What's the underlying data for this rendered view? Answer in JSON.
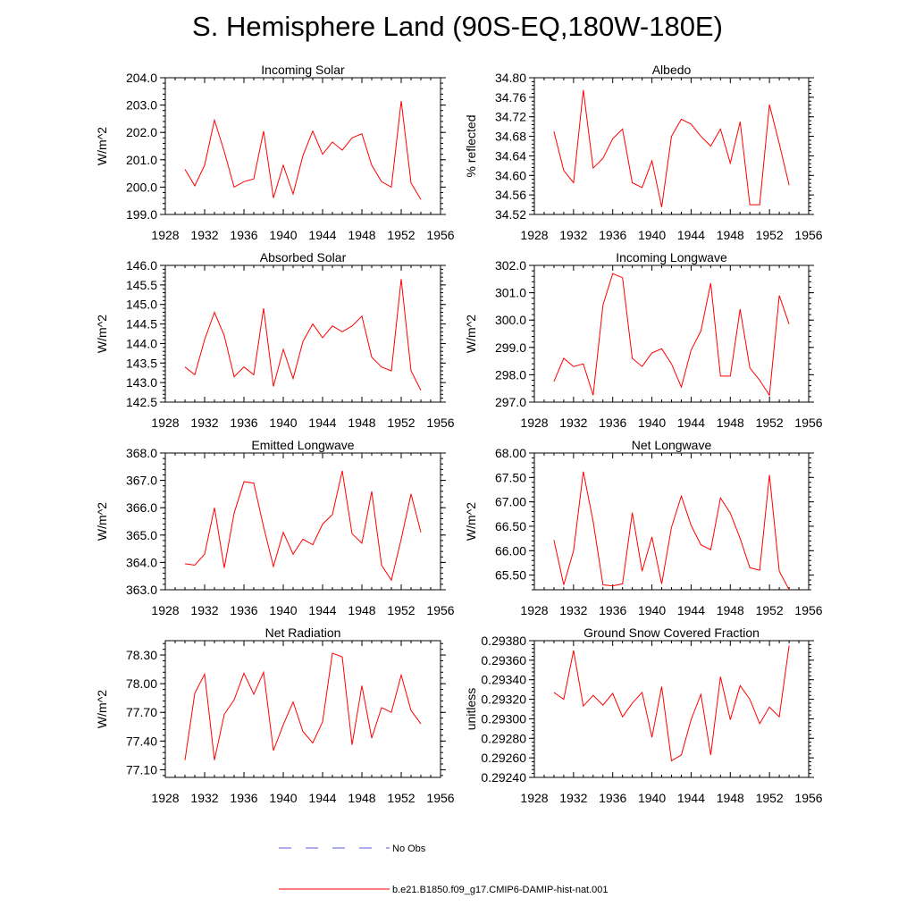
{
  "page_title": "S. Hemisphere Land (90S-EQ,180W-180E)",
  "legend": [
    {
      "label": "No Obs",
      "color": "#5a5adc",
      "style": "dashed"
    },
    {
      "label": "b.e21.B1850.f09_g17.CMIP6-DAMIP-hist-nat.001",
      "color": "#ff0000",
      "style": "solid"
    }
  ],
  "chart_data": [
    {
      "type": "line",
      "title": "Incoming Solar",
      "ylabel": "W/m^2",
      "xlim": [
        1928,
        1956
      ],
      "xticks": [
        1928,
        1932,
        1936,
        1940,
        1944,
        1948,
        1952,
        1956
      ],
      "ylim": [
        199.0,
        204.0
      ],
      "yticks": [
        "199.0",
        "200.0",
        "201.0",
        "202.0",
        "203.0",
        "204.0"
      ],
      "series": [
        {
          "color": "#ff0000",
          "x": [
            1930,
            1931,
            1932,
            1933,
            1934,
            1935,
            1936,
            1937,
            1938,
            1939,
            1940,
            1941,
            1942,
            1943,
            1944,
            1945,
            1946,
            1947,
            1948,
            1949,
            1950,
            1951,
            1952,
            1953,
            1954
          ],
          "y": [
            200.65,
            200.05,
            200.8,
            202.45,
            201.3,
            200.0,
            200.2,
            200.3,
            202.05,
            199.6,
            200.8,
            199.75,
            201.15,
            202.05,
            201.2,
            201.65,
            201.35,
            201.8,
            201.95,
            200.8,
            200.2,
            200.0,
            203.15,
            200.15,
            199.55
          ]
        }
      ]
    },
    {
      "type": "line",
      "title": "Albedo",
      "ylabel": "% reflected",
      "xlim": [
        1928,
        1956
      ],
      "xticks": [
        1928,
        1932,
        1936,
        1940,
        1944,
        1948,
        1952,
        1956
      ],
      "ylim": [
        34.52,
        34.8
      ],
      "yticks": [
        "34.52",
        "34.56",
        "34.60",
        "34.64",
        "34.68",
        "34.72",
        "34.76",
        "34.80"
      ],
      "series": [
        {
          "color": "#ff0000",
          "x": [
            1930,
            1931,
            1932,
            1933,
            1934,
            1935,
            1936,
            1937,
            1938,
            1939,
            1940,
            1941,
            1942,
            1943,
            1944,
            1945,
            1946,
            1947,
            1948,
            1949,
            1950,
            1951,
            1952,
            1953,
            1954
          ],
          "y": [
            34.69,
            34.61,
            34.585,
            34.775,
            34.615,
            34.635,
            34.675,
            34.695,
            34.585,
            34.575,
            34.63,
            34.535,
            34.68,
            34.715,
            34.705,
            34.68,
            34.66,
            34.695,
            34.625,
            34.71,
            34.54,
            34.54,
            34.745,
            34.665,
            34.58
          ]
        }
      ]
    },
    {
      "type": "line",
      "title": "Absorbed Solar",
      "ylabel": "W/m^2",
      "xlim": [
        1928,
        1956
      ],
      "xticks": [
        1928,
        1932,
        1936,
        1940,
        1944,
        1948,
        1952,
        1956
      ],
      "ylim": [
        142.5,
        146.0
      ],
      "yticks": [
        "142.5",
        "143.0",
        "143.5",
        "144.0",
        "144.5",
        "145.0",
        "145.5",
        "146.0"
      ],
      "series": [
        {
          "color": "#ff0000",
          "x": [
            1930,
            1931,
            1932,
            1933,
            1934,
            1935,
            1936,
            1937,
            1938,
            1939,
            1940,
            1941,
            1942,
            1943,
            1944,
            1945,
            1946,
            1947,
            1948,
            1949,
            1950,
            1951,
            1952,
            1953,
            1954
          ],
          "y": [
            143.4,
            143.2,
            144.1,
            144.8,
            144.2,
            143.15,
            143.4,
            143.2,
            144.9,
            142.9,
            143.85,
            143.1,
            144.05,
            144.5,
            144.15,
            144.45,
            144.3,
            144.45,
            144.7,
            143.65,
            143.4,
            143.3,
            145.65,
            143.3,
            142.8
          ]
        }
      ]
    },
    {
      "type": "line",
      "title": "Incoming Longwave",
      "ylabel": "W/m^2",
      "xlim": [
        1928,
        1956
      ],
      "xticks": [
        1928,
        1932,
        1936,
        1940,
        1944,
        1948,
        1952,
        1956
      ],
      "ylim": [
        297.0,
        302.0
      ],
      "yticks": [
        "297.0",
        "298.0",
        "299.0",
        "300.0",
        "301.0",
        "302.0"
      ],
      "series": [
        {
          "color": "#ff0000",
          "x": [
            1930,
            1931,
            1932,
            1933,
            1934,
            1935,
            1936,
            1937,
            1938,
            1939,
            1940,
            1941,
            1942,
            1943,
            1944,
            1945,
            1946,
            1947,
            1948,
            1949,
            1950,
            1951,
            1952,
            1953,
            1954
          ],
          "y": [
            297.75,
            298.6,
            298.3,
            298.4,
            297.25,
            300.55,
            301.7,
            301.55,
            298.6,
            298.3,
            298.8,
            298.95,
            298.4,
            297.55,
            298.9,
            299.6,
            301.35,
            297.95,
            297.95,
            300.4,
            298.25,
            297.8,
            297.25,
            300.9,
            299.85
          ]
        }
      ]
    },
    {
      "type": "line",
      "title": "Emitted Longwave",
      "ylabel": "W/m^2",
      "xlim": [
        1928,
        1956
      ],
      "xticks": [
        1928,
        1932,
        1936,
        1940,
        1944,
        1948,
        1952,
        1956
      ],
      "ylim": [
        363.0,
        368.0
      ],
      "yticks": [
        "363.0",
        "364.0",
        "365.0",
        "366.0",
        "367.0",
        "368.0"
      ],
      "series": [
        {
          "color": "#ff0000",
          "x": [
            1930,
            1931,
            1932,
            1933,
            1934,
            1935,
            1936,
            1937,
            1938,
            1939,
            1940,
            1941,
            1942,
            1943,
            1944,
            1945,
            1946,
            1947,
            1948,
            1949,
            1950,
            1951,
            1952,
            1953,
            1954
          ],
          "y": [
            363.95,
            363.9,
            364.3,
            366.0,
            363.8,
            365.8,
            366.95,
            366.9,
            365.3,
            363.85,
            365.1,
            364.3,
            364.85,
            364.65,
            365.4,
            365.75,
            367.35,
            365.05,
            364.7,
            366.6,
            363.9,
            363.35,
            364.85,
            366.5,
            365.1
          ]
        }
      ]
    },
    {
      "type": "line",
      "title": "Net Longwave",
      "ylabel": "W/m^2",
      "xlim": [
        1928,
        1956
      ],
      "xticks": [
        1928,
        1932,
        1936,
        1940,
        1944,
        1948,
        1952,
        1956
      ],
      "ylim": [
        65.2,
        68.0
      ],
      "yticks": [
        "65.50",
        "66.00",
        "66.50",
        "67.00",
        "67.50",
        "68.00"
      ],
      "series": [
        {
          "color": "#ff0000",
          "x": [
            1930,
            1931,
            1932,
            1933,
            1934,
            1935,
            1936,
            1937,
            1938,
            1939,
            1940,
            1941,
            1942,
            1943,
            1944,
            1945,
            1946,
            1947,
            1948,
            1949,
            1950,
            1951,
            1952,
            1953,
            1954
          ],
          "y": [
            66.22,
            65.3,
            66.0,
            67.62,
            66.6,
            65.3,
            65.28,
            65.32,
            66.78,
            65.58,
            66.28,
            65.32,
            66.48,
            67.12,
            66.52,
            66.12,
            66.02,
            67.08,
            66.77,
            66.25,
            65.65,
            65.6,
            67.55,
            65.58,
            65.2
          ]
        }
      ]
    },
    {
      "type": "line",
      "title": "Net Radiation",
      "ylabel": "W/m^2",
      "xlim": [
        1928,
        1956
      ],
      "xticks": [
        1928,
        1932,
        1936,
        1940,
        1944,
        1948,
        1952,
        1956
      ],
      "ylim": [
        77.02,
        78.45
      ],
      "yticks": [
        "77.10",
        "77.40",
        "77.70",
        "78.00",
        "78.30"
      ],
      "series": [
        {
          "color": "#ff0000",
          "x": [
            1930,
            1931,
            1932,
            1933,
            1934,
            1935,
            1936,
            1937,
            1938,
            1939,
            1940,
            1941,
            1942,
            1943,
            1944,
            1945,
            1946,
            1947,
            1948,
            1949,
            1950,
            1951,
            1952,
            1953,
            1954
          ],
          "y": [
            77.2,
            77.9,
            78.1,
            77.2,
            77.68,
            77.83,
            78.11,
            77.89,
            78.12,
            77.3,
            77.57,
            77.81,
            77.5,
            77.38,
            77.6,
            78.32,
            78.28,
            77.36,
            77.98,
            77.43,
            77.75,
            77.7,
            78.09,
            77.72,
            77.58
          ]
        }
      ]
    },
    {
      "type": "line",
      "title": "Ground Snow Covered Fraction",
      "ylabel": "unitless",
      "xlim": [
        1928,
        1956
      ],
      "xticks": [
        1928,
        1932,
        1936,
        1940,
        1944,
        1948,
        1952,
        1956
      ],
      "ylim": [
        0.2924,
        0.2938
      ],
      "yticks": [
        "0.29240",
        "0.29260",
        "0.29280",
        "0.29300",
        "0.29320",
        "0.29340",
        "0.29360",
        "0.29380"
      ],
      "series": [
        {
          "color": "#ff0000",
          "x": [
            1930,
            1931,
            1932,
            1933,
            1934,
            1935,
            1936,
            1937,
            1938,
            1939,
            1940,
            1941,
            1942,
            1943,
            1944,
            1945,
            1946,
            1947,
            1948,
            1949,
            1950,
            1951,
            1952,
            1953,
            1954
          ],
          "y": [
            0.29327,
            0.2932,
            0.2937,
            0.29313,
            0.29324,
            0.29314,
            0.29326,
            0.29302,
            0.29316,
            0.29327,
            0.29281,
            0.29333,
            0.29257,
            0.29263,
            0.29299,
            0.29325,
            0.29263,
            0.29343,
            0.29299,
            0.29334,
            0.2932,
            0.29295,
            0.29312,
            0.29302,
            0.29375
          ]
        }
      ]
    }
  ]
}
